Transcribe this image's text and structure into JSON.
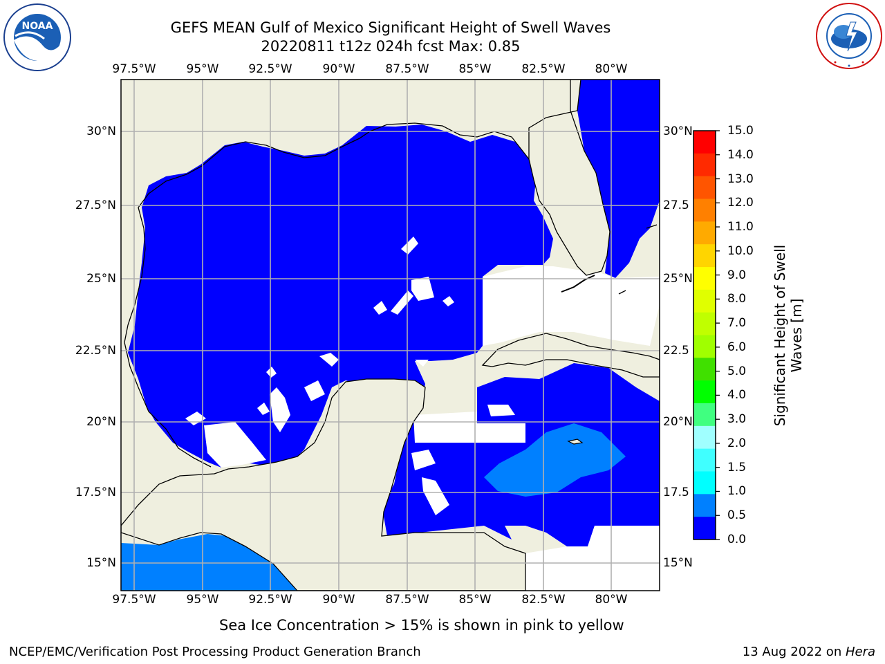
{
  "header": {
    "title_line1": "GEFS MEAN Gulf of Mexico Significant Height of Swell Waves",
    "title_line2": "20220811 t12z 024h fcst   Max: 0.85"
  },
  "logos": {
    "left": "NOAA",
    "left_ring_text": "NATIONAL OCEANIC AND ATMOSPHERIC ADMINISTRATION · U.S. DEPARTMENT OF COMMERCE",
    "right_ring_text": "NATIONAL WEATHER SERVICE"
  },
  "map": {
    "lon_labels": [
      "97.5°W",
      "95°W",
      "92.5°W",
      "90°W",
      "87.5°W",
      "85°W",
      "82.5°W",
      "80°W"
    ],
    "lat_labels_left": [
      "30°N",
      "27.5°N",
      "25°N",
      "22.5°N",
      "20°N",
      "17.5°N",
      "15°N"
    ],
    "lat_labels_right": [
      "30°N",
      "27.5",
      "25°N",
      "22.5",
      "20°N",
      "17.5",
      "15°N"
    ],
    "colors": {
      "land": "#efefdf",
      "ocean_low": "#0000ff",
      "ocean_mid": "#0080ff",
      "grid": "#b0b0b0",
      "coast": "#000000"
    }
  },
  "colorbar": {
    "label_line1": "Significant Height of Swell",
    "label_line2": "Waves [m]",
    "ticks": [
      "15.0",
      "14.0",
      "13.0",
      "12.0",
      "11.0",
      "10.0",
      "9.0",
      "8.0",
      "7.0",
      "6.0",
      "5.0",
      "4.0",
      "3.0",
      "2.0",
      "1.5",
      "1.0",
      "0.5",
      "0.0"
    ],
    "colors": [
      "#ff0000",
      "#ff2a00",
      "#ff5500",
      "#ff8000",
      "#ffaa00",
      "#ffd500",
      "#ffff00",
      "#e0ff00",
      "#c0ff00",
      "#a0ff00",
      "#40e000",
      "#00ff00",
      "#40ff80",
      "#a0ffff",
      "#40ffff",
      "#00ffff",
      "#0080ff",
      "#0000ff"
    ]
  },
  "footer": {
    "note": "Sea Ice Concentration > 15% is shown in pink to yellow",
    "left": "NCEP/EMC/Verification Post Processing Product Generation Branch",
    "right_date": "13 Aug 2022 on ",
    "right_host": "Hera"
  }
}
